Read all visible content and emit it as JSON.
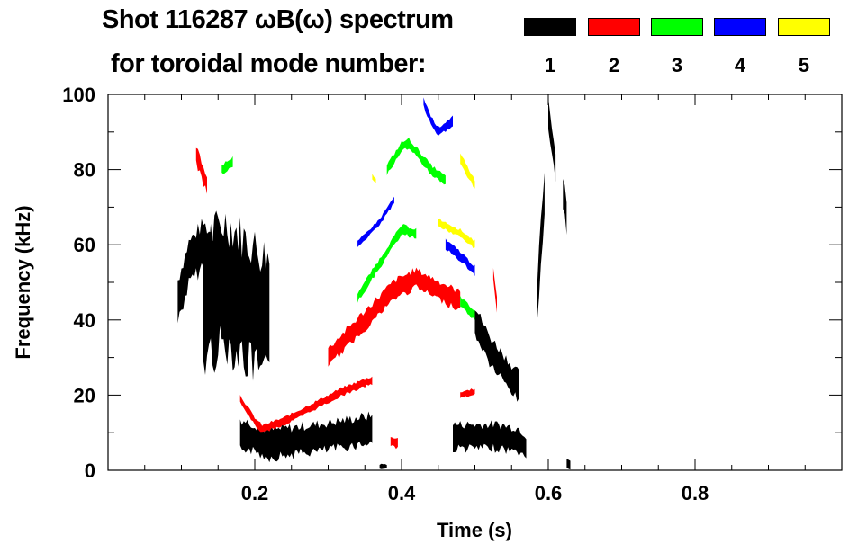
{
  "chart_data": {
    "type": "heatmap",
    "title": "Shot 116287 ωB(ω) spectrum",
    "subtitle": "for toroidal mode number:",
    "xlabel": "Time (s)",
    "ylabel": "Frequency (kHz)",
    "xlim": [
      0,
      1.0
    ],
    "ylim": [
      0,
      100
    ],
    "xticks": [
      0.2,
      0.4,
      0.6,
      0.8
    ],
    "xtick_labels": [
      "0.2",
      "0.4",
      "0.6",
      "0.8"
    ],
    "yticks": [
      0,
      20,
      40,
      60,
      80,
      100
    ],
    "ytick_labels": [
      "0",
      "20",
      "40",
      "60",
      "80",
      "100"
    ],
    "legend": [
      {
        "mode": "1",
        "color": "#000000"
      },
      {
        "mode": "2",
        "color": "#ff0000"
      },
      {
        "mode": "3",
        "color": "#00ff00"
      },
      {
        "mode": "4",
        "color": "#0000ff"
      },
      {
        "mode": "5",
        "color": "#ffff00"
      }
    ],
    "features": [
      {
        "mode": 1,
        "t": [
          0.095,
          0.11,
          0.13,
          0.15,
          0.17
        ],
        "f": [
          45,
          55,
          60,
          55,
          50
        ],
        "width": 14
      },
      {
        "mode": 1,
        "t": [
          0.13,
          0.16,
          0.19,
          0.22
        ],
        "f": [
          45,
          50,
          45,
          40
        ],
        "width": 40
      },
      {
        "mode": 1,
        "t": [
          0.18,
          0.22,
          0.26,
          0.3,
          0.33,
          0.36
        ],
        "f": [
          10,
          7,
          8,
          9,
          10,
          11
        ],
        "width": 9
      },
      {
        "mode": 1,
        "t": [
          0.37,
          0.38
        ],
        "f": [
          1,
          1
        ],
        "width": 1.5
      },
      {
        "mode": 1,
        "t": [
          0.47,
          0.5,
          0.53,
          0.56,
          0.57
        ],
        "f": [
          9,
          9,
          9,
          8,
          6
        ],
        "width": 8
      },
      {
        "mode": 1,
        "t": [
          0.5,
          0.52,
          0.54,
          0.56
        ],
        "f": [
          40,
          32,
          27,
          22
        ],
        "width": 9
      },
      {
        "mode": 1,
        "t": [
          0.585,
          0.59,
          0.595
        ],
        "f": [
          45,
          60,
          75
        ],
        "width": 14
      },
      {
        "mode": 1,
        "t": [
          0.6,
          0.605,
          0.61
        ],
        "f": [
          95,
          88,
          80
        ],
        "width": 10
      },
      {
        "mode": 1,
        "t": [
          0.62,
          0.625
        ],
        "f": [
          75,
          68
        ],
        "width": 10
      },
      {
        "mode": 1,
        "t": [
          0.625,
          0.63
        ],
        "f": [
          2,
          1
        ],
        "width": 3
      },
      {
        "mode": 2,
        "t": [
          0.12,
          0.135
        ],
        "f": [
          84,
          76
        ],
        "width": 6
      },
      {
        "mode": 2,
        "t": [
          0.18,
          0.2,
          0.21,
          0.24,
          0.28,
          0.32,
          0.36
        ],
        "f": [
          19,
          13,
          11,
          13,
          17,
          21,
          24
        ],
        "width": 2.5
      },
      {
        "mode": 2,
        "t": [
          0.3,
          0.33,
          0.36,
          0.39,
          0.42,
          0.45,
          0.48
        ],
        "f": [
          30,
          36,
          42,
          48,
          51,
          48,
          45
        ],
        "width": 6
      },
      {
        "mode": 2,
        "t": [
          0.385,
          0.395
        ],
        "f": [
          8,
          7
        ],
        "width": 3
      },
      {
        "mode": 2,
        "t": [
          0.48,
          0.5
        ],
        "f": [
          20,
          21
        ],
        "width": 2
      },
      {
        "mode": 2,
        "t": [
          0.525,
          0.53
        ],
        "f": [
          52,
          44
        ],
        "width": 4
      },
      {
        "mode": 3,
        "t": [
          0.155,
          0.17
        ],
        "f": [
          80,
          82
        ],
        "width": 3
      },
      {
        "mode": 3,
        "t": [
          0.34,
          0.37,
          0.4,
          0.42
        ],
        "f": [
          46,
          55,
          64,
          63
        ],
        "width": 3
      },
      {
        "mode": 3,
        "t": [
          0.38,
          0.4,
          0.41,
          0.44,
          0.46
        ],
        "f": [
          80,
          86,
          87,
          80,
          77
        ],
        "width": 3
      },
      {
        "mode": 3,
        "t": [
          0.48,
          0.5
        ],
        "f": [
          45,
          41
        ],
        "width": 3
      },
      {
        "mode": 4,
        "t": [
          0.43,
          0.44,
          0.45,
          0.47
        ],
        "f": [
          98,
          93,
          90,
          93
        ],
        "width": 3
      },
      {
        "mode": 4,
        "t": [
          0.34,
          0.37,
          0.39
        ],
        "f": [
          60,
          66,
          72
        ],
        "width": 2
      },
      {
        "mode": 4,
        "t": [
          0.46,
          0.48,
          0.5
        ],
        "f": [
          60,
          57,
          53
        ],
        "width": 3
      },
      {
        "mode": 5,
        "t": [
          0.48,
          0.5
        ],
        "f": [
          83,
          76
        ],
        "width": 3
      },
      {
        "mode": 5,
        "t": [
          0.45,
          0.48,
          0.5
        ],
        "f": [
          66,
          63,
          60
        ],
        "width": 2.5
      },
      {
        "mode": 5,
        "t": [
          0.36,
          0.365
        ],
        "f": [
          78,
          77
        ],
        "width": 2
      }
    ]
  }
}
